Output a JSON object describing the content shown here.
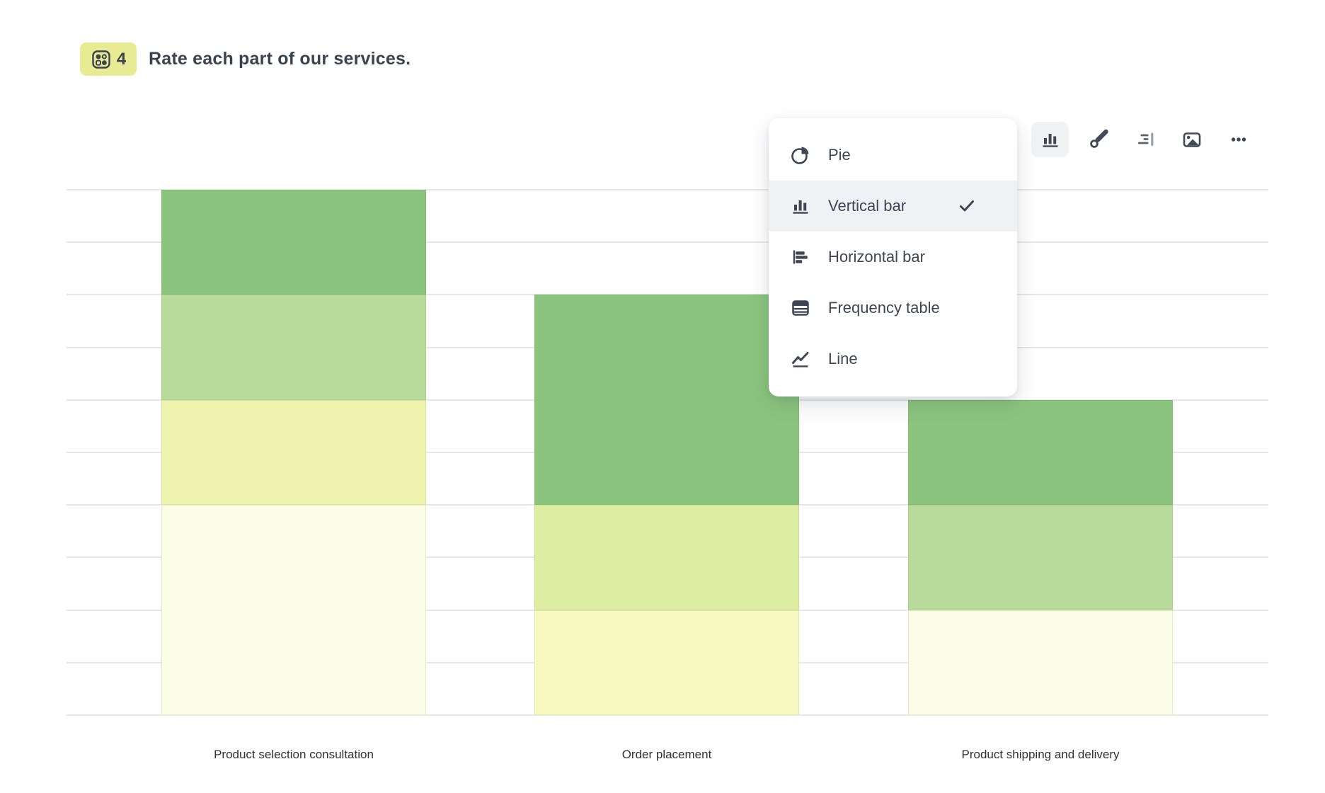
{
  "question": {
    "number": "4",
    "title": "Rate each part of our services.",
    "badge_color": "#e9eb94",
    "icon": "matrix-question-icon"
  },
  "toolbar": {
    "buttons": [
      {
        "name": "chart-type",
        "active": true
      },
      {
        "name": "style-brush",
        "active": false
      },
      {
        "name": "sort-results",
        "active": false
      },
      {
        "name": "image",
        "active": false
      },
      {
        "name": "more-options",
        "active": false
      }
    ]
  },
  "menu": {
    "items": [
      {
        "label": "Pie",
        "icon": "pie-chart-icon",
        "selected": false
      },
      {
        "label": "Vertical bar",
        "icon": "vertical-bar-icon",
        "selected": true
      },
      {
        "label": "Horizontal bar",
        "icon": "horizontal-bar-icon",
        "selected": false
      },
      {
        "label": "Frequency table",
        "icon": "frequency-table-icon",
        "selected": false
      },
      {
        "label": "Line",
        "icon": "line-chart-icon",
        "selected": false
      }
    ]
  },
  "chart_data": {
    "type": "bar",
    "variant": "stacked-vertical",
    "title": "Rate each part of our services.",
    "categories": [
      "Product selection consultation",
      "Order placement",
      "Product shipping and delivery"
    ],
    "y_axis": {
      "labels_visible": false,
      "gridline_count": 11,
      "range_divisions": [
        0,
        10
      ]
    },
    "legend": "none visible",
    "note": "segment values are in y-gridline divisions, listed top-to-bottom per bar",
    "bars": [
      {
        "category": "Product selection consultation",
        "total_divisions": 10,
        "segments": [
          {
            "value": 2,
            "color": "#8bc47e"
          },
          {
            "value": 2,
            "color": "#b8da9b"
          },
          {
            "value": 2,
            "color": "#eef4ae"
          },
          {
            "value": 4,
            "color": "#fcfde7"
          }
        ]
      },
      {
        "category": "Order placement",
        "total_divisions": 8,
        "segments": [
          {
            "value": 4,
            "color": "#8bc47e"
          },
          {
            "value": 2,
            "color": "#ddeda1"
          },
          {
            "value": 2,
            "color": "#f6f8c0"
          }
        ]
      },
      {
        "category": "Product shipping and delivery",
        "total_divisions": 6,
        "segments": [
          {
            "value": 2,
            "color": "#8bc47e"
          },
          {
            "value": 2,
            "color": "#b8da9b"
          },
          {
            "value": 2,
            "color": "#fcfde7"
          }
        ]
      }
    ],
    "gridline_color": "#e7e7e7"
  }
}
